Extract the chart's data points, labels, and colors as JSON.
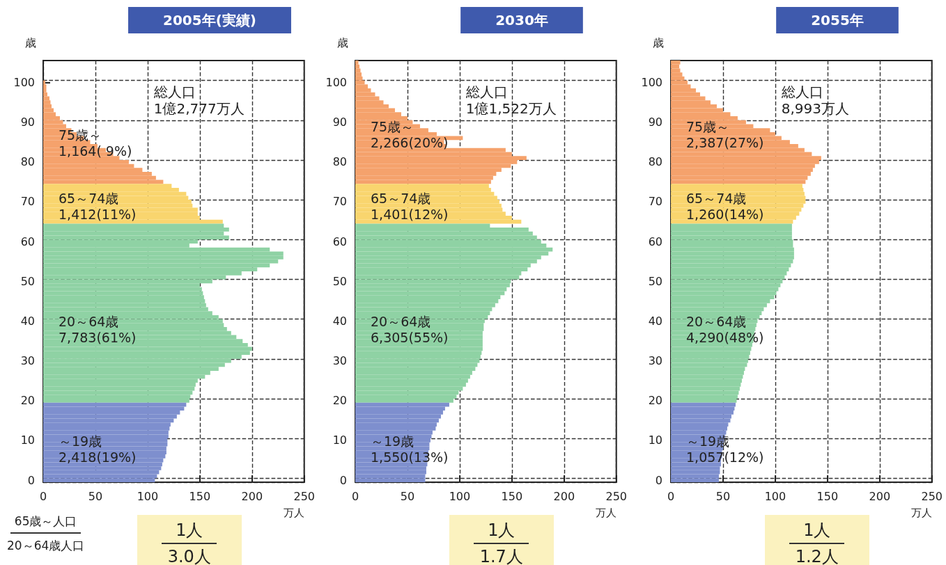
{
  "chart_data": [
    {
      "type": "bar",
      "orientation": "horizontal",
      "stacked": true,
      "title": "2005年(実績)",
      "xlabel": "万人",
      "ylabel": "歳",
      "xlim": [
        0,
        250
      ],
      "xticks": [
        0,
        50,
        100,
        150,
        200,
        250
      ],
      "grid": true,
      "categories": [
        null,
        null,
        null,
        null,
        null,
        "100",
        null,
        null,
        null,
        null,
        null,
        null,
        null,
        null,
        null,
        "90",
        null,
        null,
        null,
        null,
        null,
        null,
        null,
        null,
        null,
        "80",
        null,
        null,
        null,
        null,
        null,
        null,
        null,
        null,
        null,
        "70",
        null,
        null,
        null,
        null,
        null,
        null,
        null,
        null,
        null,
        "60",
        null,
        null,
        null,
        null,
        null,
        null,
        null,
        null,
        null,
        "50",
        null,
        null,
        null,
        null,
        null,
        null,
        null,
        null,
        null,
        "40",
        null,
        null,
        null,
        null,
        null,
        null,
        null,
        null,
        null,
        "30",
        null,
        null,
        null,
        null,
        null,
        null,
        null,
        null,
        null,
        "20",
        null,
        null,
        null,
        null,
        null,
        null,
        null,
        null,
        null,
        "10",
        null,
        null,
        null,
        null,
        null,
        null,
        null,
        null,
        null,
        "0"
      ],
      "series": [
        {
          "color": "#f5a26c",
          "values": [
            null,
            null,
            null,
            null,
            null,
            2,
            3,
            3,
            4,
            6,
            7,
            8,
            10,
            12,
            16,
            19,
            22,
            27,
            32,
            39,
            45,
            52,
            60,
            67,
            73,
            82,
            87,
            95,
            104,
            108,
            115,
            null,
            null,
            null,
            null,
            null,
            null,
            null,
            null,
            null,
            null,
            null,
            null,
            null,
            null,
            null,
            null,
            null,
            null,
            null,
            null,
            null,
            null,
            null,
            null,
            null,
            null,
            null,
            null,
            null,
            null,
            null,
            null,
            null,
            null,
            null,
            null,
            null,
            null,
            null,
            null,
            null,
            null,
            null,
            null,
            null,
            null,
            null,
            null,
            null,
            null,
            null,
            null,
            null,
            null,
            null,
            null,
            null,
            null,
            null,
            null,
            null,
            null,
            null,
            null,
            null,
            null,
            null,
            null,
            null,
            null,
            null,
            null,
            null,
            null,
            null
          ]
        },
        {
          "color": "#f9d56e",
          "values": [
            null,
            null,
            null,
            null,
            null,
            null,
            null,
            null,
            null,
            null,
            null,
            null,
            null,
            null,
            null,
            null,
            null,
            null,
            null,
            null,
            null,
            null,
            null,
            null,
            null,
            null,
            null,
            null,
            null,
            null,
            null,
            123,
            130,
            137,
            139,
            142,
            143,
            148,
            148,
            150,
            172,
            null,
            null,
            null,
            null,
            null,
            null,
            null,
            null,
            null,
            null,
            null,
            null,
            null,
            null,
            null,
            null,
            null,
            null,
            null,
            null,
            null,
            null,
            null,
            null,
            null,
            null,
            null,
            null,
            null,
            null,
            null,
            null,
            null,
            null,
            null,
            null,
            null,
            null,
            null,
            null,
            null,
            null,
            null,
            null,
            null,
            null,
            null,
            null,
            null,
            null,
            null,
            null,
            null,
            null,
            null,
            null,
            null,
            null,
            null,
            null,
            null,
            null,
            null,
            null,
            null
          ]
        },
        {
          "color": "#8fd2a4",
          "values": [
            null,
            null,
            null,
            null,
            null,
            null,
            null,
            null,
            null,
            null,
            null,
            null,
            null,
            null,
            null,
            null,
            null,
            null,
            null,
            null,
            null,
            null,
            null,
            null,
            null,
            null,
            null,
            null,
            null,
            null,
            null,
            null,
            null,
            null,
            null,
            null,
            null,
            null,
            null,
            null,
            null,
            173,
            178,
            173,
            178,
            148,
            140,
            217,
            230,
            230,
            225,
            217,
            205,
            190,
            175,
            162,
            150,
            152,
            153,
            154,
            155,
            156,
            158,
            162,
            168,
            172,
            173,
            176,
            180,
            185,
            191,
            196,
            200,
            198,
            190,
            180,
            174,
            168,
            160,
            155,
            148,
            146,
            145,
            143,
            141,
            140,
            null,
            null,
            null,
            null,
            null,
            null,
            null,
            null,
            null,
            null,
            null,
            null,
            null,
            null,
            null,
            null,
            null,
            null,
            null,
            null
          ]
        },
        {
          "color": "#7e8fce",
          "values": [
            null,
            null,
            null,
            null,
            null,
            null,
            null,
            null,
            null,
            null,
            null,
            null,
            null,
            null,
            null,
            null,
            null,
            null,
            null,
            null,
            null,
            null,
            null,
            null,
            null,
            null,
            null,
            null,
            null,
            null,
            null,
            null,
            null,
            null,
            null,
            null,
            null,
            null,
            null,
            null,
            null,
            null,
            null,
            null,
            null,
            null,
            null,
            null,
            null,
            null,
            null,
            null,
            null,
            null,
            null,
            null,
            null,
            null,
            null,
            null,
            null,
            null,
            null,
            null,
            null,
            null,
            null,
            null,
            null,
            null,
            null,
            null,
            null,
            null,
            null,
            null,
            null,
            null,
            null,
            null,
            null,
            null,
            null,
            null,
            null,
            null,
            137,
            135,
            131,
            128,
            125,
            122,
            121,
            120,
            120,
            119,
            119,
            118,
            118,
            117,
            115,
            114,
            113,
            111,
            109,
            107
          ]
        }
      ],
      "annotations": [
        "総人口\n1億2,777万人",
        "75歳～\n1,164( 9%)",
        "65～74歳\n1,412(11%)",
        "20～64歳\n7,783(61%)",
        "～19歳\n2,418(19%)",
        "1人",
        "3.0人",
        "65歳～人口",
        "20～64歳人口"
      ]
    },
    {
      "type": "bar",
      "orientation": "horizontal",
      "stacked": true,
      "title": "2030年",
      "xlabel": "万人",
      "ylabel": "歳",
      "xlim": [
        0,
        250
      ],
      "xticks": [
        0,
        50,
        100,
        150,
        200,
        250
      ],
      "grid": true,
      "categories": [
        null,
        null,
        null,
        null,
        null,
        "100",
        null,
        null,
        null,
        null,
        null,
        null,
        null,
        null,
        null,
        "90",
        null,
        null,
        null,
        null,
        null,
        null,
        null,
        null,
        null,
        "80",
        null,
        null,
        null,
        null,
        null,
        null,
        null,
        null,
        null,
        "70",
        null,
        null,
        null,
        null,
        null,
        null,
        null,
        null,
        null,
        "60",
        null,
        null,
        null,
        null,
        null,
        null,
        null,
        null,
        null,
        "50",
        null,
        null,
        null,
        null,
        null,
        null,
        null,
        null,
        null,
        "40",
        null,
        null,
        null,
        null,
        null,
        null,
        null,
        null,
        null,
        "30",
        null,
        null,
        null,
        null,
        null,
        null,
        null,
        null,
        null,
        "20",
        null,
        null,
        null,
        null,
        null,
        null,
        null,
        null,
        null,
        "10",
        null,
        null,
        null,
        null,
        null,
        null,
        null,
        null,
        null,
        "0"
      ],
      "series": [
        {
          "color": "#f5a26c",
          "values": [
            3,
            4,
            5,
            6,
            7,
            9,
            12,
            15,
            19,
            23,
            27,
            32,
            38,
            44,
            50,
            55,
            62,
            70,
            78,
            103,
            85,
            87,
            144,
            150,
            164,
            155,
            149,
            140,
            135,
            132,
            130,
            null,
            null,
            null,
            null,
            null,
            null,
            null,
            null,
            null,
            null,
            null,
            null,
            null,
            null,
            null,
            null,
            null,
            null,
            null,
            null,
            null,
            null,
            null,
            null,
            null,
            null,
            null,
            null,
            null,
            null,
            null,
            null,
            null,
            null,
            null,
            null,
            null,
            null,
            null,
            null,
            null,
            null,
            null,
            null,
            null,
            null,
            null,
            null,
            null,
            null,
            null,
            null,
            null,
            null,
            null,
            null,
            null,
            null,
            null,
            null,
            null,
            null,
            null,
            null,
            null,
            null,
            null,
            null,
            null,
            null,
            null,
            null,
            null,
            null,
            null
          ]
        },
        {
          "color": "#f9d56e",
          "values": [
            null,
            null,
            null,
            null,
            null,
            null,
            null,
            null,
            null,
            null,
            null,
            null,
            null,
            null,
            null,
            null,
            null,
            null,
            null,
            null,
            null,
            null,
            null,
            null,
            null,
            null,
            null,
            null,
            null,
            null,
            null,
            128,
            130,
            133,
            136,
            138,
            140,
            141,
            144,
            150,
            159,
            null,
            null,
            null,
            null,
            null,
            null,
            null,
            null,
            null,
            null,
            null,
            null,
            null,
            null,
            null,
            null,
            null,
            null,
            null,
            null,
            null,
            null,
            null,
            null,
            null,
            null,
            null,
            null,
            null,
            null,
            null,
            null,
            null,
            null,
            null,
            null,
            null,
            null,
            null,
            null,
            null,
            null,
            null,
            null,
            null,
            null,
            null,
            null,
            null,
            null,
            null,
            null,
            null,
            null,
            null,
            null,
            null,
            null,
            null,
            null,
            null,
            null,
            null,
            null,
            null
          ]
        },
        {
          "color": "#8fd2a4",
          "values": [
            null,
            null,
            null,
            null,
            null,
            null,
            null,
            null,
            null,
            null,
            null,
            null,
            null,
            null,
            null,
            null,
            null,
            null,
            null,
            null,
            null,
            null,
            null,
            null,
            null,
            null,
            null,
            null,
            null,
            null,
            null,
            null,
            null,
            null,
            null,
            null,
            null,
            null,
            null,
            null,
            null,
            129,
            166,
            170,
            174,
            178,
            183,
            189,
            185,
            178,
            174,
            168,
            165,
            159,
            157,
            149,
            148,
            145,
            143,
            139,
            137,
            134,
            131,
            129,
            127,
            124,
            123,
            123,
            122,
            122,
            122,
            122,
            122,
            121,
            120,
            119,
            117,
            115,
            112,
            110,
            108,
            106,
            103,
            99,
            97,
            94,
            null,
            null,
            null,
            null,
            null,
            null,
            null,
            null,
            null,
            null,
            null,
            null,
            null,
            null,
            null,
            null,
            null,
            null,
            null,
            null
          ]
        },
        {
          "color": "#7e8fce",
          "values": [
            null,
            null,
            null,
            null,
            null,
            null,
            null,
            null,
            null,
            null,
            null,
            null,
            null,
            null,
            null,
            null,
            null,
            null,
            null,
            null,
            null,
            null,
            null,
            null,
            null,
            null,
            null,
            null,
            null,
            null,
            null,
            null,
            null,
            null,
            null,
            null,
            null,
            null,
            null,
            null,
            null,
            null,
            null,
            null,
            null,
            null,
            null,
            null,
            null,
            null,
            null,
            null,
            null,
            null,
            null,
            null,
            null,
            null,
            null,
            null,
            null,
            null,
            null,
            null,
            null,
            null,
            null,
            null,
            null,
            null,
            null,
            null,
            null,
            null,
            null,
            null,
            null,
            null,
            null,
            null,
            null,
            null,
            null,
            null,
            null,
            null,
            90,
            86,
            84,
            82,
            80,
            78,
            77,
            74,
            73,
            72,
            71,
            71,
            70,
            70,
            69,
            69,
            68,
            68,
            67,
            67
          ]
        }
      ],
      "annotations": [
        "総人口\n1億1,522万人",
        "75歳～\n2,266(20%)",
        "65～74歳\n1,401(12%)",
        "20～64歳\n6,305(55%)",
        "～19歳\n1,550(13%)",
        "1人",
        "1.7人"
      ]
    },
    {
      "type": "bar",
      "orientation": "horizontal",
      "stacked": true,
      "title": "2055年",
      "xlabel": "万人",
      "ylabel": "歳",
      "xlim": [
        0,
        250
      ],
      "xticks": [
        0,
        50,
        100,
        150,
        200,
        250
      ],
      "grid": true,
      "categories": [
        null,
        null,
        null,
        null,
        null,
        "100",
        null,
        null,
        null,
        null,
        null,
        null,
        null,
        null,
        null,
        "90",
        null,
        null,
        null,
        null,
        null,
        null,
        null,
        null,
        null,
        "80",
        null,
        null,
        null,
        null,
        null,
        null,
        null,
        null,
        null,
        "70",
        null,
        null,
        null,
        null,
        null,
        null,
        null,
        null,
        null,
        "60",
        null,
        null,
        null,
        null,
        null,
        null,
        null,
        null,
        null,
        "50",
        null,
        null,
        null,
        null,
        null,
        null,
        null,
        null,
        null,
        "40",
        null,
        null,
        null,
        null,
        null,
        null,
        null,
        null,
        null,
        "30",
        null,
        null,
        null,
        null,
        null,
        null,
        null,
        null,
        null,
        "20",
        null,
        null,
        null,
        null,
        null,
        null,
        null,
        null,
        null,
        "10",
        null,
        null,
        null,
        null,
        null,
        null,
        null,
        null,
        null,
        "0"
      ],
      "series": [
        {
          "color": "#f5a26c",
          "values": [
            9,
            8,
            9,
            11,
            13,
            16,
            19,
            24,
            28,
            33,
            38,
            44,
            50,
            57,
            64,
            72,
            79,
            95,
            100,
            106,
            114,
            122,
            128,
            135,
            144,
            142,
            138,
            136,
            134,
            131,
            129,
            null,
            null,
            null,
            null,
            null,
            null,
            null,
            null,
            null,
            null,
            null,
            null,
            null,
            null,
            null,
            null,
            null,
            null,
            null,
            null,
            null,
            null,
            null,
            null,
            null,
            null,
            null,
            null,
            null,
            null,
            null,
            null,
            null,
            null,
            null,
            null,
            null,
            null,
            null,
            null,
            null,
            null,
            null,
            null,
            null,
            null,
            null,
            null,
            null,
            null,
            null,
            null,
            null,
            null,
            null,
            null,
            null,
            null,
            null,
            null,
            null,
            null,
            null,
            null,
            null,
            null,
            null,
            null,
            null,
            null,
            null,
            null,
            null,
            null,
            null
          ]
        },
        {
          "color": "#f9d56e",
          "values": [
            null,
            null,
            null,
            null,
            null,
            null,
            null,
            null,
            null,
            null,
            null,
            null,
            null,
            null,
            null,
            null,
            null,
            null,
            null,
            null,
            null,
            null,
            null,
            null,
            null,
            null,
            null,
            null,
            null,
            null,
            null,
            126,
            127,
            128,
            129,
            129,
            127,
            125,
            123,
            120,
            117,
            null,
            null,
            null,
            null,
            null,
            null,
            null,
            null,
            null,
            null,
            null,
            null,
            null,
            null,
            null,
            null,
            null,
            null,
            null,
            null,
            null,
            null,
            null,
            null,
            null,
            null,
            null,
            null,
            null,
            null,
            null,
            null,
            null,
            null,
            null,
            null,
            null,
            null,
            null,
            null,
            null,
            null,
            null,
            null,
            null,
            null,
            null,
            null,
            null,
            null,
            null,
            null,
            null,
            null,
            null,
            null,
            null,
            null,
            null,
            null,
            null,
            null,
            null,
            null,
            null
          ]
        },
        {
          "color": "#8fd2a4",
          "values": [
            null,
            null,
            null,
            null,
            null,
            null,
            null,
            null,
            null,
            null,
            null,
            null,
            null,
            null,
            null,
            null,
            null,
            null,
            null,
            null,
            null,
            null,
            null,
            null,
            null,
            null,
            null,
            null,
            null,
            null,
            null,
            null,
            null,
            null,
            null,
            null,
            null,
            null,
            null,
            null,
            null,
            116,
            116,
            116,
            116,
            117,
            117,
            118,
            118,
            118,
            117,
            115,
            113,
            111,
            109,
            107,
            105,
            103,
            101,
            99,
            95,
            92,
            89,
            87,
            85,
            83,
            82,
            81,
            80,
            80,
            79,
            78,
            77,
            76,
            75,
            74,
            73,
            71,
            70,
            69,
            68,
            67,
            66,
            65,
            64,
            63,
            null,
            null,
            null,
            null,
            null,
            null,
            null,
            null,
            null,
            null,
            null,
            null,
            null,
            null,
            null,
            null,
            null,
            null,
            null,
            null
          ]
        },
        {
          "color": "#7e8fce",
          "values": [
            null,
            null,
            null,
            null,
            null,
            null,
            null,
            null,
            null,
            null,
            null,
            null,
            null,
            null,
            null,
            null,
            null,
            null,
            null,
            null,
            null,
            null,
            null,
            null,
            null,
            null,
            null,
            null,
            null,
            null,
            null,
            null,
            null,
            null,
            null,
            null,
            null,
            null,
            null,
            null,
            null,
            null,
            null,
            null,
            null,
            null,
            null,
            null,
            null,
            null,
            null,
            null,
            null,
            null,
            null,
            null,
            null,
            null,
            null,
            null,
            null,
            null,
            null,
            null,
            null,
            null,
            null,
            null,
            null,
            null,
            null,
            null,
            null,
            null,
            null,
            null,
            null,
            null,
            null,
            null,
            null,
            null,
            null,
            null,
            null,
            null,
            62,
            61,
            60,
            58,
            57,
            55,
            54,
            53,
            52,
            51,
            50,
            50,
            49,
            49,
            48,
            48,
            47,
            47,
            46,
            46
          ]
        }
      ],
      "annotations": [
        "総人口\n8,993万人",
        "75歳～\n2,387(27%)",
        "65～74歳\n1,260(14%)",
        "20～64歳\n4,290(48%)",
        "～19歳\n1,057(12%)",
        "1人",
        "1.2人"
      ]
    }
  ]
}
